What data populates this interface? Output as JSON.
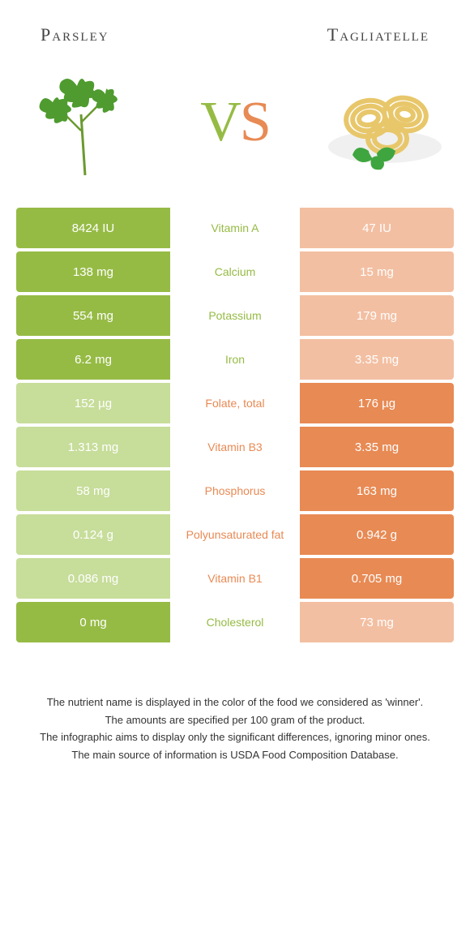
{
  "food_left": {
    "name": "Parsley",
    "color": "#96bb45",
    "color_dim": "#c7dd9a"
  },
  "food_right": {
    "name": "Tagliatelle",
    "color": "#e88a54",
    "color_dim": "#f3bfa2"
  },
  "vs_label_v": "V",
  "vs_label_s": "S",
  "nutrients": [
    {
      "label": "Vitamin A",
      "left": "8424 IU",
      "right": "47 IU",
      "winner": "left"
    },
    {
      "label": "Calcium",
      "left": "138 mg",
      "right": "15 mg",
      "winner": "left"
    },
    {
      "label": "Potassium",
      "left": "554 mg",
      "right": "179 mg",
      "winner": "left"
    },
    {
      "label": "Iron",
      "left": "6.2 mg",
      "right": "3.35 mg",
      "winner": "left"
    },
    {
      "label": "Folate, total",
      "left": "152 µg",
      "right": "176 µg",
      "winner": "right"
    },
    {
      "label": "Vitamin B3",
      "left": "1.313 mg",
      "right": "3.35 mg",
      "winner": "right"
    },
    {
      "label": "Phosphorus",
      "left": "58 mg",
      "right": "163 mg",
      "winner": "right"
    },
    {
      "label": "Polyunsaturated fat",
      "left": "0.124 g",
      "right": "0.942 g",
      "winner": "right"
    },
    {
      "label": "Vitamin B1",
      "left": "0.086 mg",
      "right": "0.705 mg",
      "winner": "right"
    },
    {
      "label": "Cholesterol",
      "left": "0 mg",
      "right": "73 mg",
      "winner": "left"
    }
  ],
  "footnotes": [
    "The nutrient name is displayed in the color of the food we considered as 'winner'.",
    "The amounts are specified per 100 gram of the product.",
    "The infographic aims to display only the significant differences, ignoring minor ones.",
    "The main source of information is USDA Food Composition Database."
  ]
}
